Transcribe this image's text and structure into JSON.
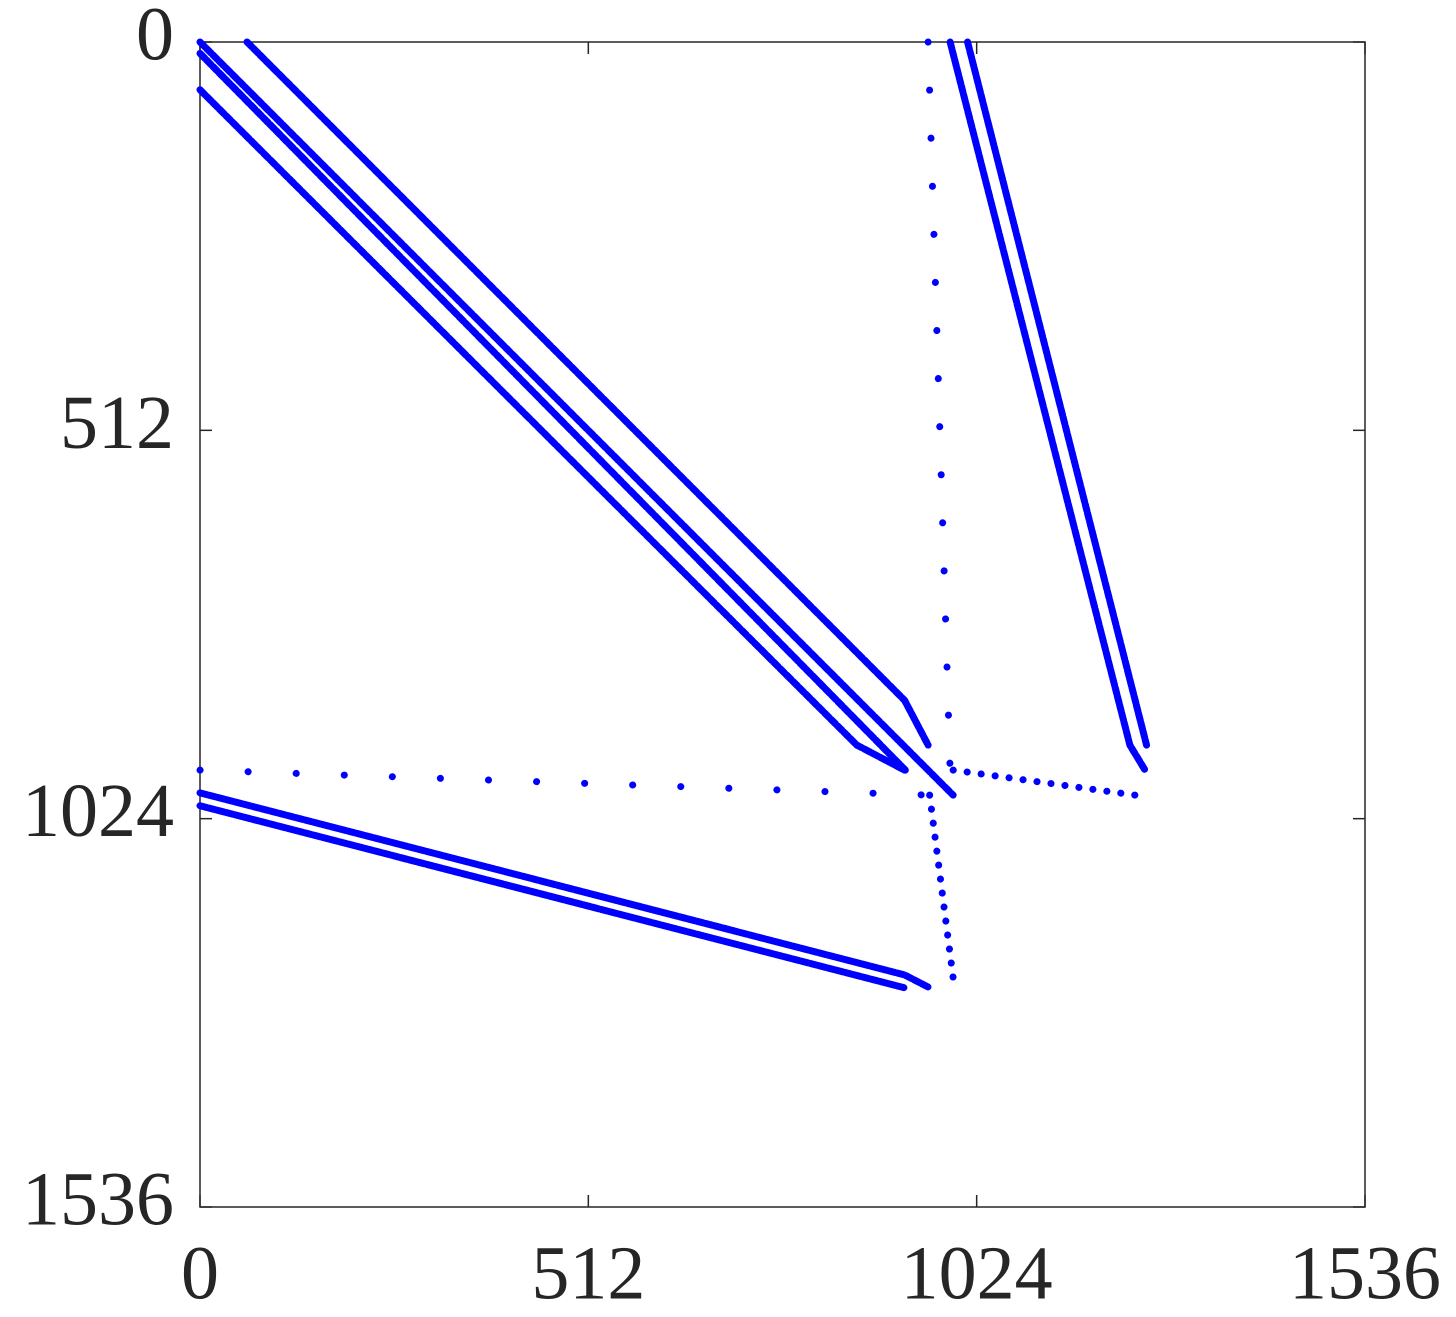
{
  "chart_data": {
    "type": "line",
    "xlim": [
      0,
      1536
    ],
    "ylim": [
      0,
      1536
    ],
    "yreverse": true,
    "xticks": [
      0,
      512,
      1024,
      1536
    ],
    "yticks": [
      0,
      512,
      1024,
      1536
    ],
    "series": [
      {
        "color": "#0000ff",
        "linestyle": "solid",
        "x": [
          62,
          929,
          960
        ],
        "values": [
          0,
          868,
          927
        ]
      },
      {
        "color": "#0000ff",
        "linestyle": "solid",
        "x": [
          0,
          993
        ],
        "values": [
          0,
          993
        ]
      },
      {
        "color": "#0000ff",
        "linestyle": "solid",
        "x": [
          0,
          930
        ],
        "values": [
          15,
          960
        ]
      },
      {
        "color": "#0000ff",
        "linestyle": "solid",
        "x": [
          0,
          866,
          929
        ],
        "values": [
          63,
          927,
          960
        ]
      },
      {
        "color": "#0000ff",
        "linestyle": "solid",
        "x": [
          989,
          1226,
          1246
        ],
        "values": [
          0,
          927,
          960
        ]
      },
      {
        "color": "#0000ff",
        "linestyle": "solid",
        "x": [
          1012,
          1248
        ],
        "values": [
          0,
          927
        ]
      },
      {
        "color": "#0000ff",
        "linestyle": "sparse",
        "x": [
          960,
          989
        ],
        "values": [
          0,
          960
        ]
      },
      {
        "color": "#0000ff",
        "linestyle": "sparse",
        "x": [
          0,
          962
        ],
        "values": [
          960,
          993
        ]
      },
      {
        "color": "#0000ff",
        "linestyle": "dotted",
        "x": [
          993,
          1233
        ],
        "values": [
          960,
          993
        ]
      },
      {
        "color": "#0000ff",
        "linestyle": "dotted",
        "x": [
          962,
          993
        ],
        "values": [
          993,
          1234
        ]
      },
      {
        "color": "#0000ff",
        "linestyle": "solid",
        "x": [
          0,
          929,
          962
        ],
        "values": [
          990,
          1230,
          1247
        ]
      },
      {
        "color": "#0000ff",
        "linestyle": "solid",
        "x": [
          0,
          929
        ],
        "values": [
          1007,
          1247
        ]
      }
    ]
  }
}
